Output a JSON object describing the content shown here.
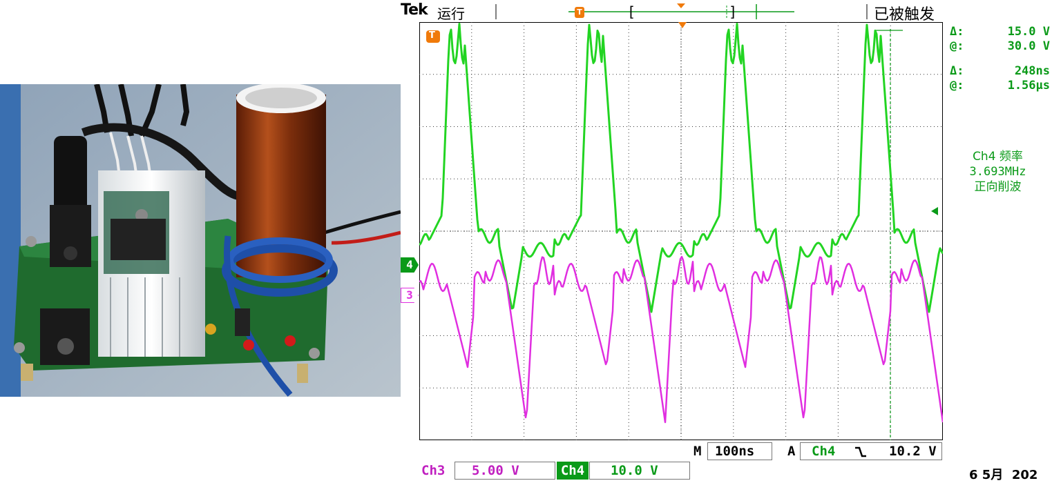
{
  "header": {
    "brand": "Tek",
    "run_state": "运行",
    "trigger_status": "已被触发"
  },
  "cursor_readout": {
    "voltage": [
      {
        "symbol": "Δ:",
        "value": "15.0 V"
      },
      {
        "symbol": "@:",
        "value": "30.0 V"
      }
    ],
    "time": [
      {
        "symbol": "Δ:",
        "value": "248ns"
      },
      {
        "symbol": "@:",
        "value": "1.56µs"
      }
    ]
  },
  "measurement": {
    "label": "Ch4 频率",
    "value": "3.693MHz",
    "note": "正向削波"
  },
  "channels": {
    "ch4_marker": "4",
    "ch3_marker": "3",
    "ch3_label": "Ch3",
    "ch3_scale": "5.00 V",
    "ch4_label": "Ch4",
    "ch4_scale": "10.0 V"
  },
  "timebase": {
    "m_label": "M",
    "value": "100ns"
  },
  "trigger": {
    "a_label": "A",
    "source": "Ch4",
    "slope_icon": "falling-edge-icon",
    "level": "10.2 V"
  },
  "date_fragment": "6 5月  202",
  "colors": {
    "ch4": "#22d422",
    "ch3": "#e02ee0",
    "trigger_orange": "#f07a0a",
    "readout_green": "#0a9a18"
  },
  "trigger_marker_letter": "T"
}
